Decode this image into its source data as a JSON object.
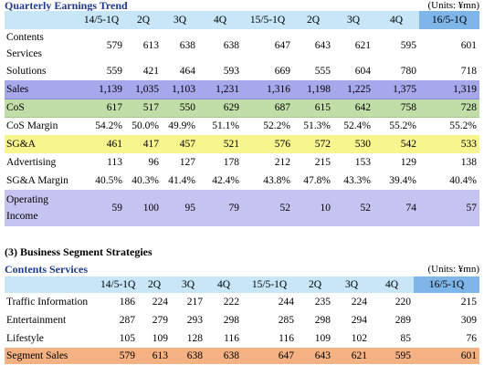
{
  "section1": {
    "title": "Quarterly Earnings Trend",
    "units": "(Units:  ¥mn)",
    "columns": [
      "14/5-1Q",
      "2Q",
      "3Q",
      "4Q",
      "15/5-1Q",
      "2Q",
      "3Q",
      "4Q",
      "16/5-1Q"
    ],
    "rows": [
      {
        "label": "Contents Services",
        "values": [
          "579",
          "613",
          "638",
          "638",
          "647",
          "643",
          "621",
          "595",
          "601"
        ]
      },
      {
        "label": "Solutions",
        "values": [
          "559",
          "421",
          "464",
          "593",
          "669",
          "555",
          "604",
          "780",
          "718"
        ]
      },
      {
        "label": "Sales",
        "values": [
          "1,139",
          "1,035",
          "1,103",
          "1,231",
          "1,316",
          "1,198",
          "1,225",
          "1,375",
          "1,319"
        ]
      },
      {
        "label": "CoS",
        "values": [
          "617",
          "517",
          "550",
          "629",
          "687",
          "615",
          "642",
          "758",
          "728"
        ]
      },
      {
        "label": "CoS Margin",
        "values": [
          "54.2%",
          "50.0%",
          "49.9%",
          "51.1%",
          "52.2%",
          "51.3%",
          "52.4%",
          "55.2%",
          "55.2%"
        ]
      },
      {
        "label": "SG&A",
        "values": [
          "461",
          "417",
          "457",
          "521",
          "576",
          "572",
          "530",
          "542",
          "533"
        ]
      },
      {
        "label": "Advertising",
        "values": [
          "113",
          "96",
          "127",
          "178",
          "212",
          "215",
          "153",
          "129",
          "138"
        ]
      },
      {
        "label": "SG&A Margin",
        "values": [
          "40.5%",
          "40.3%",
          "41.4%",
          "42.4%",
          "43.8%",
          "47.8%",
          "43.3%",
          "39.4%",
          "40.4%"
        ]
      },
      {
        "label": "Operating Income",
        "values": [
          "59",
          "100",
          "95",
          "79",
          "52",
          "10",
          "52",
          "74",
          "57"
        ]
      }
    ]
  },
  "section2": {
    "heading": "(3)   Business Segment Strategies",
    "title": "Contents Services",
    "units": "(Units:  ¥mn)",
    "columns": [
      "14/5-1Q",
      "2Q",
      "3Q",
      "4Q",
      "15/5-1Q",
      "2Q",
      "3Q",
      "4Q",
      "16/5-1Q"
    ],
    "rows": [
      {
        "label": "Traffic Information",
        "values": [
          "186",
          "224",
          "217",
          "222",
          "244",
          "235",
          "224",
          "220",
          "215"
        ]
      },
      {
        "label": "Entertainment",
        "values": [
          "287",
          "279",
          "293",
          "298",
          "285",
          "298",
          "294",
          "289",
          "309"
        ]
      },
      {
        "label": "Lifestyle",
        "values": [
          "105",
          "109",
          "128",
          "116",
          "116",
          "109",
          "102",
          "85",
          "76"
        ]
      },
      {
        "label": "Segment Sales",
        "values": [
          "579",
          "613",
          "638",
          "638",
          "647",
          "643",
          "621",
          "595",
          "601"
        ]
      }
    ]
  },
  "colors": {
    "title": "#1f3a8a",
    "header": "#c7e6f7",
    "sales": "#a7a8ec",
    "cos": "#c2dea8",
    "sga": "#f7f58e",
    "op_income": "#c5c3f0",
    "segment_sales": "#f4b183"
  }
}
